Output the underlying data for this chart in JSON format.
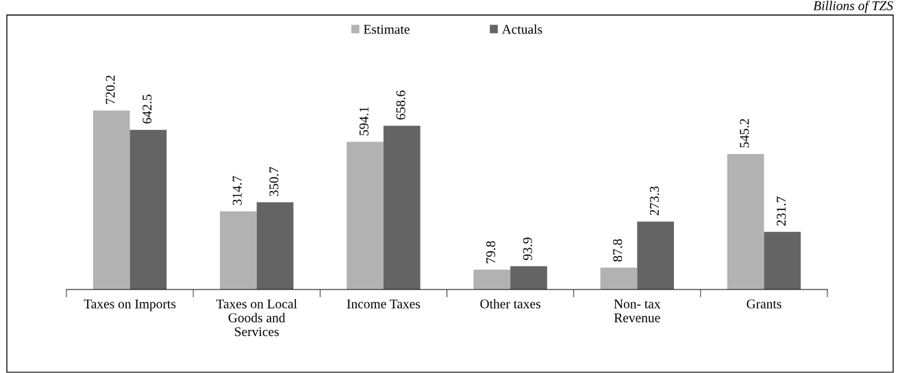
{
  "chart_data": {
    "type": "bar",
    "categories": [
      "Taxes on Imports",
      "Taxes on Local\nGoods and\nServices",
      "Income Taxes",
      "Other taxes",
      "Non- tax\nRevenue",
      "Grants"
    ],
    "series": [
      {
        "name": "Estimate",
        "color": "#b2b2b2",
        "values": [
          720.2,
          314.7,
          594.1,
          79.8,
          87.8,
          545.2
        ]
      },
      {
        "name": "Actuals",
        "color": "#646464",
        "values": [
          642.5,
          350.7,
          658.6,
          93.9,
          273.3,
          231.7
        ]
      }
    ],
    "data_labels": true,
    "legend": "top",
    "grid": false,
    "annotations": [
      "Billions of TZS"
    ]
  }
}
